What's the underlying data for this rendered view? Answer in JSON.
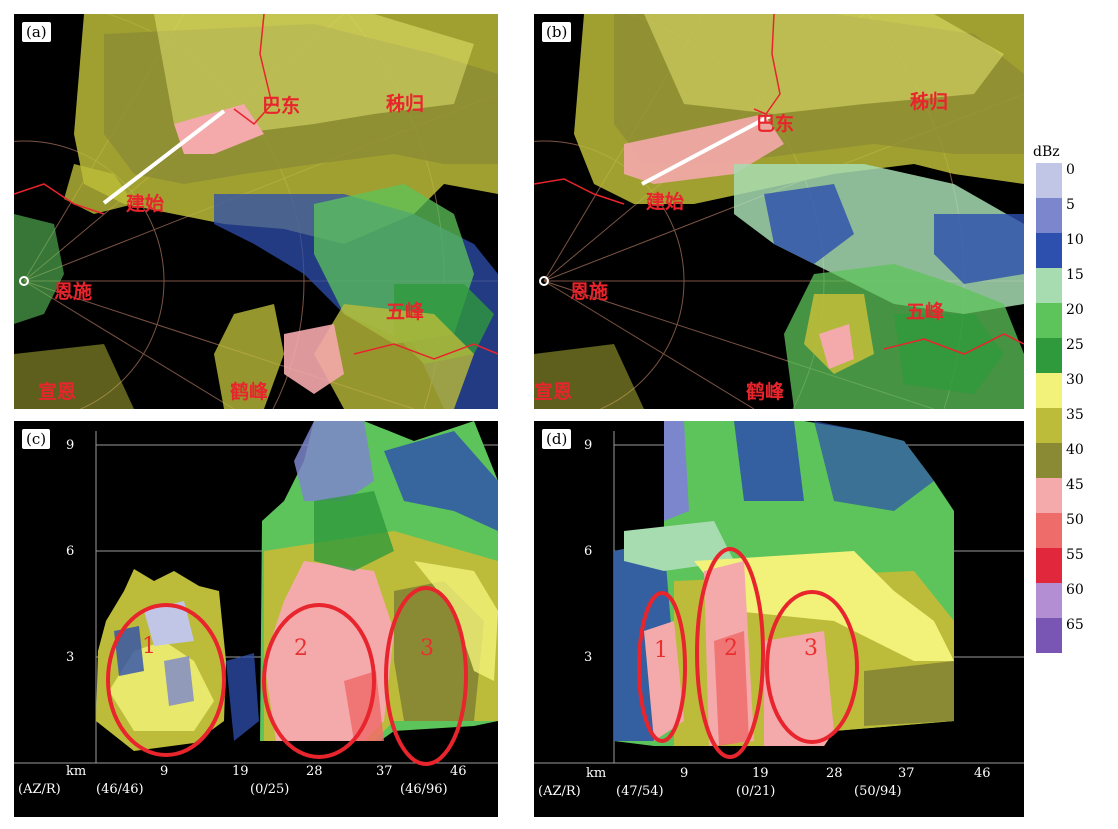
{
  "panels": {
    "a": {
      "label": "(a)"
    },
    "b": {
      "label": "(b)"
    },
    "c": {
      "label": "(c)",
      "cells": [
        "1",
        "2",
        "3"
      ],
      "az_r": [
        "(46/46)",
        "(0/25)",
        "(46/96)"
      ]
    },
    "d": {
      "label": "(d)",
      "cells": [
        "1",
        "2",
        "3"
      ],
      "az_r": [
        "(47/54)",
        "(0/21)",
        "(50/94)"
      ]
    }
  },
  "cities": {
    "badong": "巴东",
    "zigui": "秭归",
    "jianshi": "建始",
    "enshi": "恩施",
    "wufeng": "五峰",
    "xuanen": "宣恩",
    "hefeng": "鹤峰"
  },
  "axis": {
    "height_ticks": [
      "9",
      "6",
      "3"
    ],
    "x_unit": "km",
    "x_ticks": [
      "9",
      "19",
      "28",
      "37",
      "46"
    ],
    "az_r_label": "(AZ/R)"
  },
  "legend": {
    "title": "dBz",
    "labels": [
      "0",
      "5",
      "10",
      "15",
      "20",
      "25",
      "30",
      "35",
      "40",
      "45",
      "50",
      "55",
      "60",
      "65"
    ],
    "colors": [
      "#c2c6e6",
      "#7c86cc",
      "#2d4fae",
      "#a7dcb1",
      "#5cc45a",
      "#2f9a3c",
      "#f2f27a",
      "#bcbc3a",
      "#8a8a34",
      "#f4a9ab",
      "#ee6d6b",
      "#e1273b",
      "#b48ed2",
      "#7a56b4"
    ]
  }
}
